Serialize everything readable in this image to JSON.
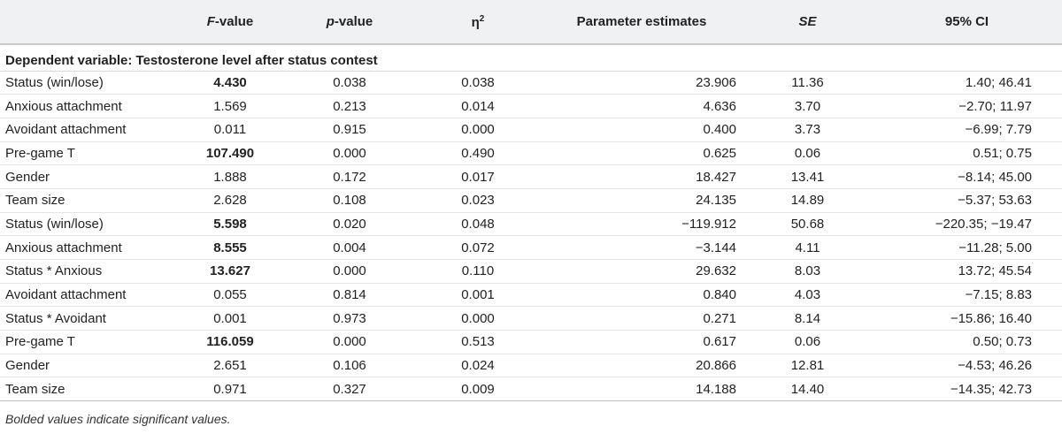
{
  "table": {
    "headers": {
      "label": "",
      "f_value_italic": "F",
      "f_value_rest": "-value",
      "p_value_italic": "p",
      "p_value_rest": "-value",
      "eta_symbol": "η",
      "eta_sup": "2",
      "parameter_estimates": "Parameter estimates",
      "se": "SE",
      "ci": "95% CI"
    },
    "section_title": "Dependent variable: Testosterone level after status contest",
    "rows": [
      {
        "label": "Status (win/lose)",
        "f": "4.430",
        "f_bold": true,
        "p": "0.038",
        "eta": "0.038",
        "est": "23.906",
        "se": "11.36",
        "ci": "1.40; 46.41"
      },
      {
        "label": "Anxious attachment",
        "f": "1.569",
        "f_bold": false,
        "p": "0.213",
        "eta": "0.014",
        "est": "4.636",
        "se": "3.70",
        "ci": "−2.70; 11.97"
      },
      {
        "label": "Avoidant attachment",
        "f": "0.011",
        "f_bold": false,
        "p": "0.915",
        "eta": "0.000",
        "est": "0.400",
        "se": "3.73",
        "ci": "−6.99; 7.79"
      },
      {
        "label": "Pre-game T",
        "f": "107.490",
        "f_bold": true,
        "p": "0.000",
        "eta": "0.490",
        "est": "0.625",
        "se": "0.06",
        "ci": "0.51; 0.75"
      },
      {
        "label": "Gender",
        "f": "1.888",
        "f_bold": false,
        "p": "0.172",
        "eta": "0.017",
        "est": "18.427",
        "se": "13.41",
        "ci": "−8.14; 45.00"
      },
      {
        "label": "Team size",
        "f": "2.628",
        "f_bold": false,
        "p": "0.108",
        "eta": "0.023",
        "est": "24.135",
        "se": "14.89",
        "ci": "−5.37; 53.63"
      },
      {
        "label": "Status (win/lose)",
        "f": "5.598",
        "f_bold": true,
        "p": "0.020",
        "eta": "0.048",
        "est": "−119.912",
        "se": "50.68",
        "ci": "−220.35; −19.47"
      },
      {
        "label": "Anxious attachment",
        "f": "8.555",
        "f_bold": true,
        "p": "0.004",
        "eta": "0.072",
        "est": "−3.144",
        "se": "4.11",
        "ci": "−11.28; 5.00"
      },
      {
        "label": "Status * Anxious",
        "f": "13.627",
        "f_bold": true,
        "p": "0.000",
        "eta": "0.110",
        "est": "29.632",
        "se": "8.03",
        "ci": "13.72; 45.54"
      },
      {
        "label": "Avoidant attachment",
        "f": "0.055",
        "f_bold": false,
        "p": "0.814",
        "eta": "0.001",
        "est": "0.840",
        "se": "4.03",
        "ci": "−7.15; 8.83"
      },
      {
        "label": "Status * Avoidant",
        "f": "0.001",
        "f_bold": false,
        "p": "0.973",
        "eta": "0.000",
        "est": "0.271",
        "se": "8.14",
        "ci": "−15.86; 16.40"
      },
      {
        "label": "Pre-game T",
        "f": "116.059",
        "f_bold": true,
        "p": "0.000",
        "eta": "0.513",
        "est": "0.617",
        "se": "0.06",
        "ci": "0.50; 0.73"
      },
      {
        "label": "Gender",
        "f": "2.651",
        "f_bold": false,
        "p": "0.106",
        "eta": "0.024",
        "est": "20.866",
        "se": "12.81",
        "ci": "−4.53; 46.26"
      },
      {
        "label": "Team size",
        "f": "0.971",
        "f_bold": false,
        "p": "0.327",
        "eta": "0.009",
        "est": "14.188",
        "se": "14.40",
        "ci": "−14.35; 42.73"
      }
    ],
    "footnote": "Bolded values indicate significant values."
  }
}
